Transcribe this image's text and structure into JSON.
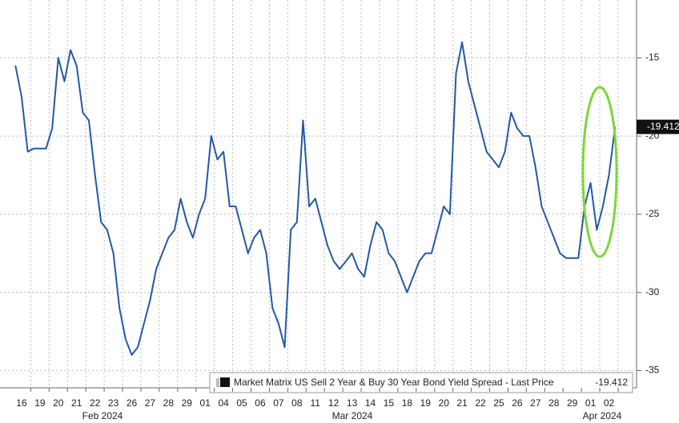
{
  "chart_data": {
    "type": "line",
    "categories": [
      "16",
      null,
      null,
      "19",
      null,
      null,
      "20",
      null,
      null,
      "21",
      null,
      null,
      "22",
      null,
      null,
      "23",
      null,
      null,
      "26",
      null,
      null,
      "27",
      null,
      null,
      "28",
      null,
      null,
      "29",
      null,
      null,
      "01",
      null,
      null,
      "04",
      null,
      null,
      "05",
      null,
      null,
      "06",
      null,
      null,
      "07",
      null,
      null,
      "08",
      null,
      null,
      "11",
      null,
      null,
      "12",
      null,
      null,
      "13",
      null,
      null,
      "14",
      null,
      null,
      "15",
      null,
      null,
      "18",
      null,
      null,
      "19",
      null,
      null,
      "20",
      null,
      null,
      "21",
      null,
      null,
      "22",
      null,
      null,
      "25",
      null,
      null,
      "26",
      null,
      null,
      "27",
      null,
      null,
      "28",
      null,
      null,
      "29",
      null,
      null,
      "01",
      null,
      null,
      "02",
      null,
      null
    ],
    "x_group_labels": [
      "Feb 2024",
      "Mar 2024",
      "Apr 2024"
    ],
    "series": [
      {
        "name": "Market Matrix US Sell 2 Year & Buy 30 Year Bond Yield Spread - Last Price",
        "color": "#2458a6",
        "values": [
          -15.5,
          -17.5,
          -21.0,
          -20.8,
          -20.8,
          -20.8,
          -19.5,
          -15.0,
          -16.5,
          -14.5,
          -15.5,
          -18.5,
          -19.0,
          -22.5,
          -25.5,
          -26.0,
          -27.5,
          -31.0,
          -33.0,
          -34.0,
          -33.5,
          -32.0,
          -30.5,
          -28.5,
          -27.5,
          -26.5,
          -26.0,
          -24.0,
          -25.5,
          -26.5,
          -25.0,
          -24.0,
          -20.0,
          -21.5,
          -21.0,
          -24.5,
          -24.5,
          -26.0,
          -27.5,
          -26.5,
          -26.0,
          -27.5,
          -31.0,
          -32.0,
          -33.5,
          -26.0,
          -25.5,
          -19.0,
          -24.5,
          -24.0,
          -25.5,
          -27.0,
          -28.0,
          -28.5,
          -28.0,
          -27.5,
          -28.5,
          -29.0,
          -27.0,
          -25.5,
          -26.0,
          -27.5,
          -28.0,
          -29.0,
          -30.0,
          -29.0,
          -28.0,
          -27.5,
          -27.5,
          -26.0,
          -24.5,
          -25.0,
          -16.0,
          -14.0,
          -16.5,
          -18.0,
          -19.5,
          -21.0,
          -21.5,
          -22.0,
          -21.0,
          -18.5,
          -19.5,
          -20.0,
          -20.0,
          -22.0,
          -24.5,
          -25.5,
          -26.5,
          -27.5,
          -27.8,
          -27.8,
          -27.8,
          -24.5,
          -23.0,
          -26.0,
          -24.5,
          -22.5,
          -19.412
        ]
      }
    ],
    "ylim": [
      -36.1,
      -11.3
    ],
    "yticks": [
      -15,
      -20,
      -25,
      -30,
      -35
    ],
    "grid": true
  }
}
